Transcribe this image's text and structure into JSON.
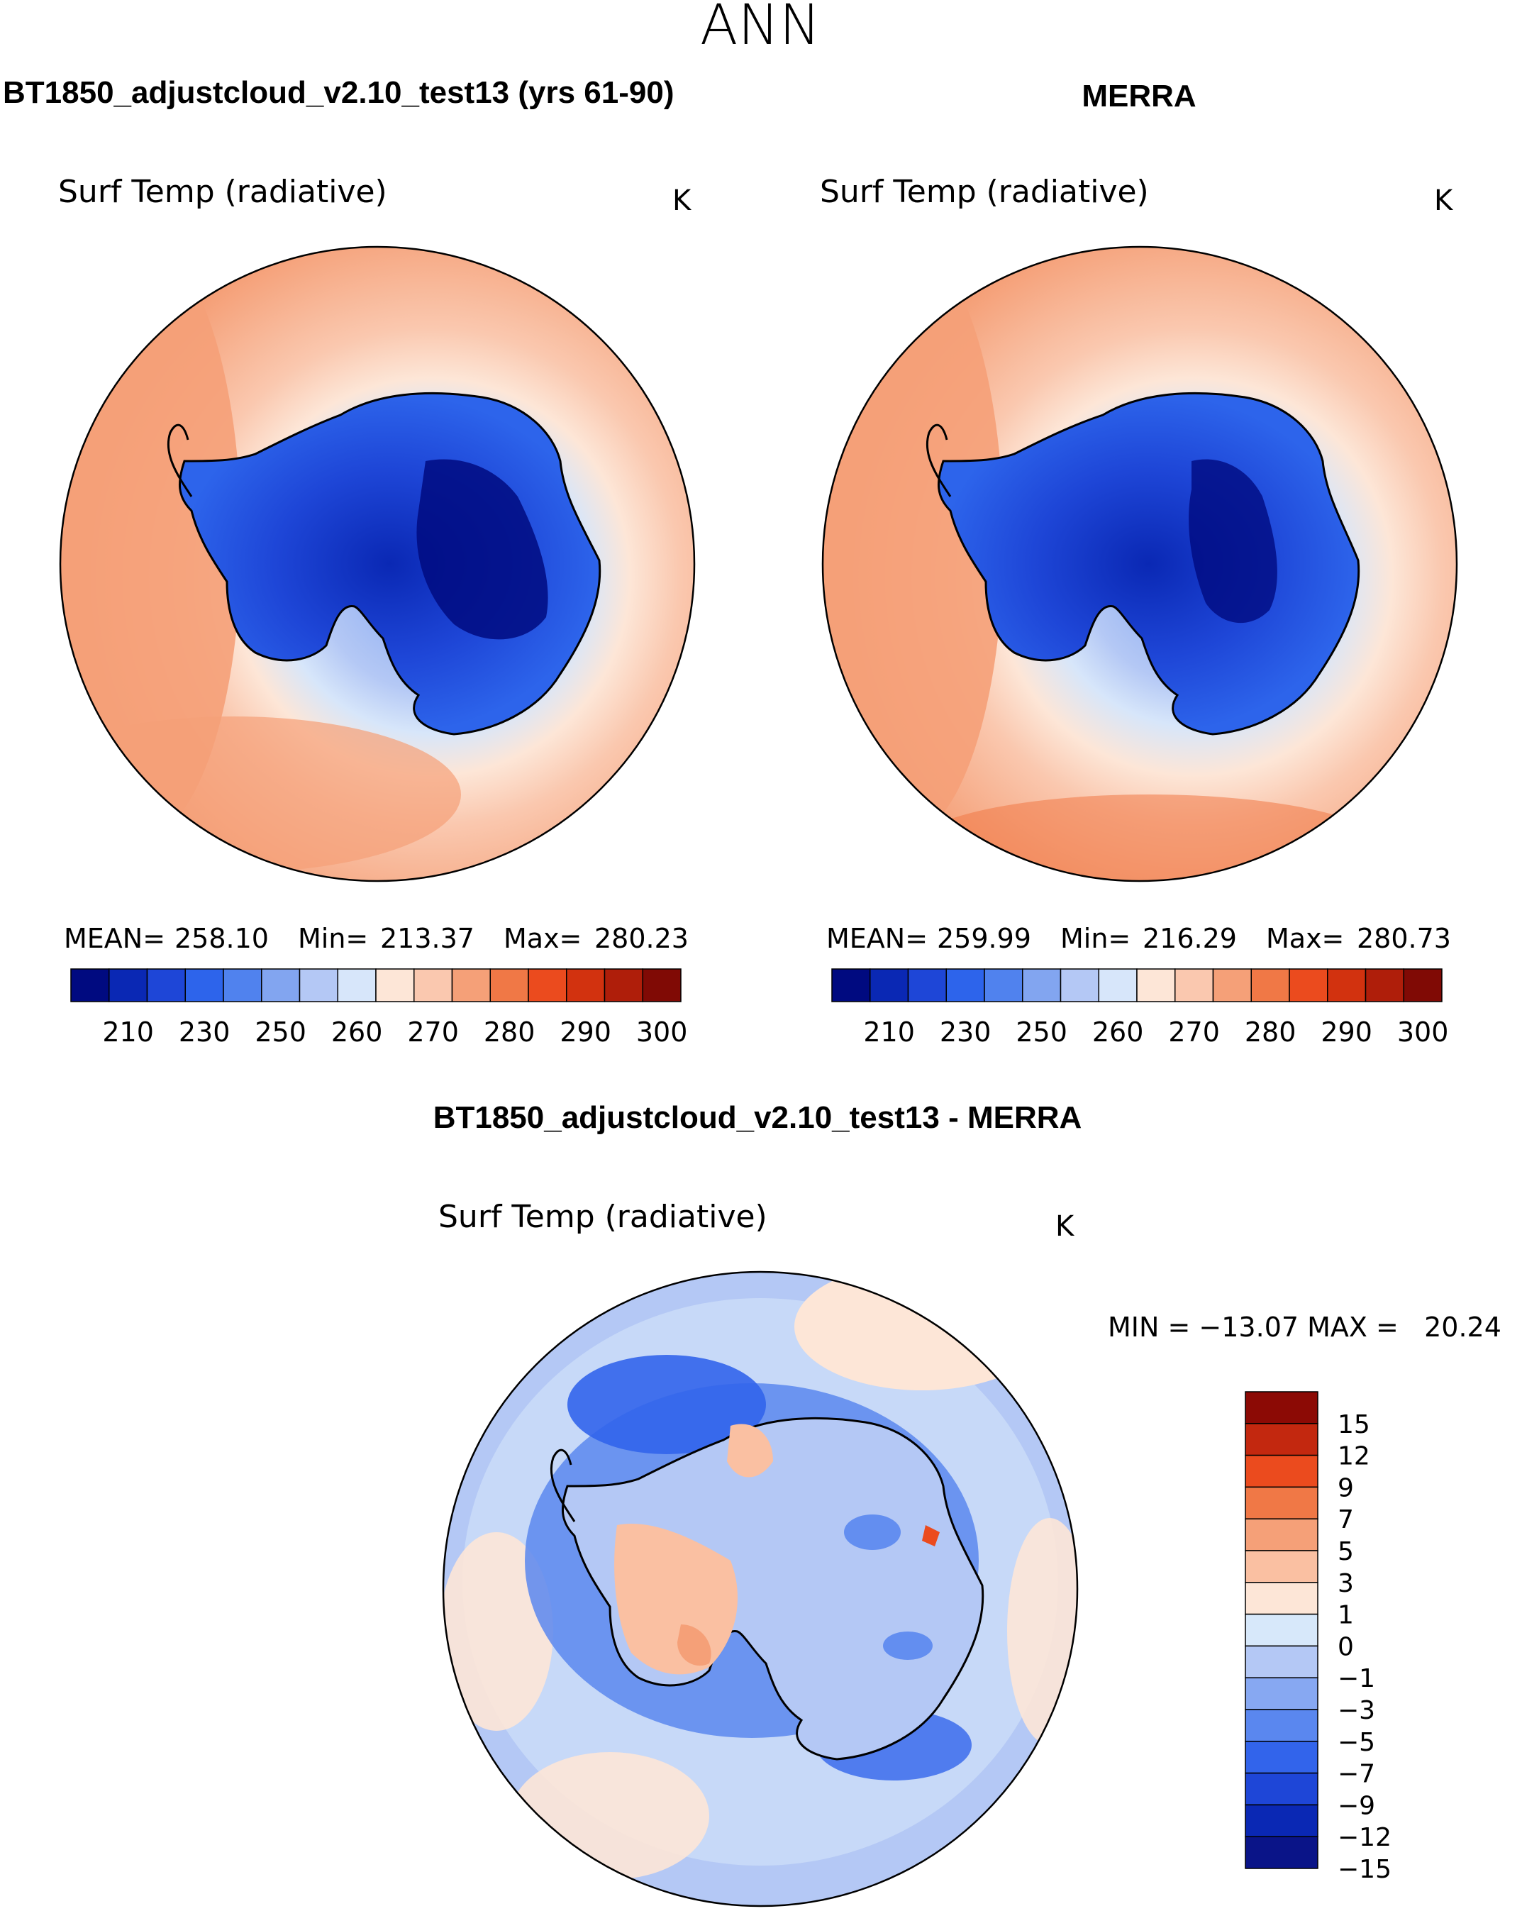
{
  "season": "ANN",
  "colors": {
    "abs_scale": [
      "#000a80",
      "#0a28b4",
      "#1e46d7",
      "#2d64eb",
      "#5082ee",
      "#82a5f0",
      "#b4c8f5",
      "#d7e6fa",
      "#fde6d7",
      "#fac8af",
      "#f5a078",
      "#f07846",
      "#eb4b1e",
      "#d2320f",
      "#af1e0a",
      "#800a05"
    ],
    "diff_scale": [
      "#0a1488",
      "#0a28b4",
      "#1e46d7",
      "#3264eb",
      "#5a87ef",
      "#87a8f2",
      "#b4c8f5",
      "#d7e8fa",
      "#fde6d7",
      "#fac0a2",
      "#f5a078",
      "#f07846",
      "#eb4b1e",
      "#c3280f",
      "#8c0a05"
    ],
    "coast": "#000000"
  },
  "panels": {
    "test": {
      "heading": "BT1850_adjustcloud_v2.10_test13 (yrs 61-90)",
      "variable": "Surf Temp (radiative)",
      "units": "K",
      "stats": {
        "mean_label": "MEAN=",
        "mean": "258.10",
        "min_label": "Min=",
        "min": "213.37",
        "max_label": "Max=",
        "max": "280.23"
      },
      "colorbar_ticks": [
        "210",
        "230",
        "250",
        "260",
        "270",
        "280",
        "290",
        "300"
      ]
    },
    "obs": {
      "heading": "MERRA",
      "variable": "Surf Temp (radiative)",
      "units": "K",
      "stats": {
        "mean_label": "MEAN=",
        "mean": "259.99",
        "min_label": "Min=",
        "min": "216.29",
        "max_label": "Max=",
        "max": "280.73"
      },
      "colorbar_ticks": [
        "210",
        "230",
        "250",
        "260",
        "270",
        "280",
        "290",
        "300"
      ]
    },
    "diff": {
      "heading": "BT1850_adjustcloud_v2.10_test13 - MERRA",
      "variable": "Surf Temp (radiative)",
      "units": "K",
      "range_text": "MIN = −13.07 MAX =   20.24",
      "colorbar_labels": [
        "15",
        "12",
        "9",
        "7",
        "5",
        "3",
        "1",
        "0",
        "−1",
        "−3",
        "−5",
        "−7",
        "−9",
        "−12",
        "−15"
      ]
    }
  },
  "chart_data": [
    {
      "type": "heatmap",
      "projection": "south-polar-stereographic",
      "title": "BT1850_adjustcloud_v2.10_test13 (yrs 61-90)",
      "variable": "Surf Temp (radiative)",
      "units": "K",
      "mean": 258.1,
      "min": 213.37,
      "max": 280.23,
      "contour_levels": [
        210,
        220,
        230,
        240,
        250,
        255,
        260,
        265,
        270,
        275,
        280,
        285,
        290,
        295,
        300
      ]
    },
    {
      "type": "heatmap",
      "projection": "south-polar-stereographic",
      "title": "MERRA",
      "variable": "Surf Temp (radiative)",
      "units": "K",
      "mean": 259.99,
      "min": 216.29,
      "max": 280.73,
      "contour_levels": [
        210,
        220,
        230,
        240,
        250,
        255,
        260,
        265,
        270,
        275,
        280,
        285,
        290,
        295,
        300
      ]
    },
    {
      "type": "heatmap",
      "projection": "south-polar-stereographic",
      "title": "BT1850_adjustcloud_v2.10_test13 - MERRA",
      "variable": "Surf Temp (radiative)",
      "units": "K",
      "min": -13.07,
      "max": 20.24,
      "contour_levels": [
        -15,
        -12,
        -9,
        -7,
        -5,
        -3,
        -1,
        0,
        1,
        3,
        5,
        7,
        9,
        12,
        15
      ]
    }
  ]
}
